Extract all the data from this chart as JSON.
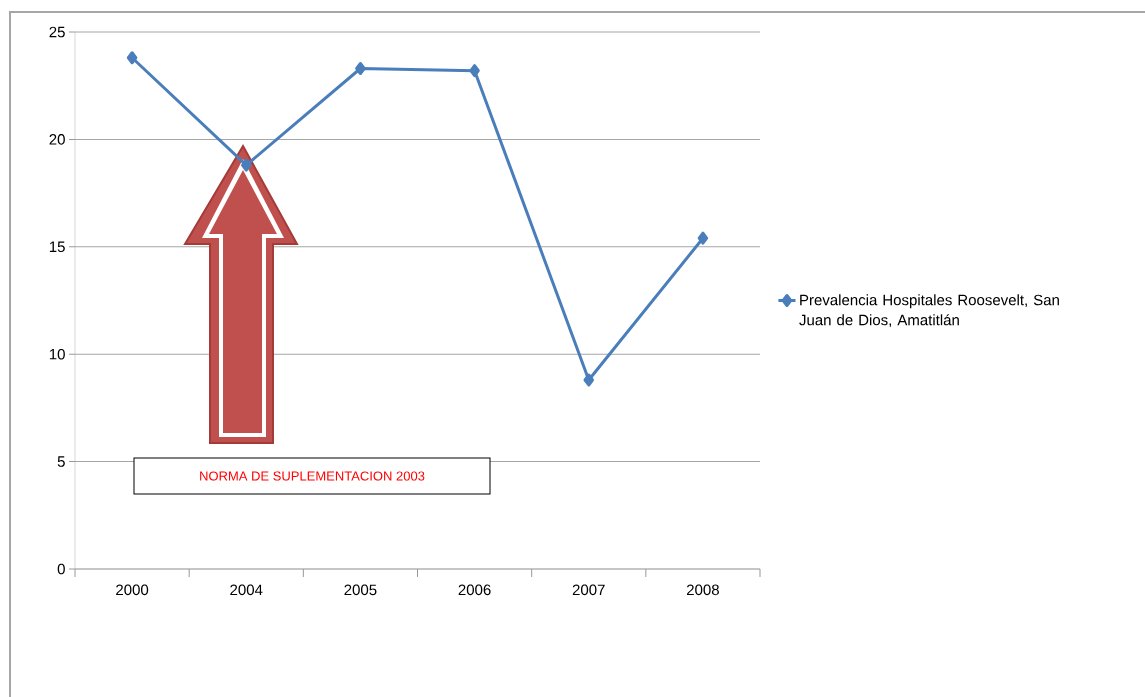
{
  "chart_data": {
    "type": "line",
    "categories": [
      "2000",
      "2004",
      "2005",
      "2006",
      "2007",
      "2008"
    ],
    "series": [
      {
        "name": "Prevalencia Hospitales Roosevelt, San Juan de Dios, Amatitlán",
        "color": "#4a7ebb",
        "values": [
          23.8,
          18.8,
          23.3,
          23.2,
          8.8,
          15.4
        ]
      }
    ],
    "ylim": [
      0,
      25
    ],
    "yticks": [
      0,
      5,
      10,
      15,
      20,
      25
    ],
    "grid": "y",
    "legend": "right",
    "marker": "diamond",
    "annotations": [
      "NORMA DE SUPLEMENTACION 2003"
    ]
  }
}
